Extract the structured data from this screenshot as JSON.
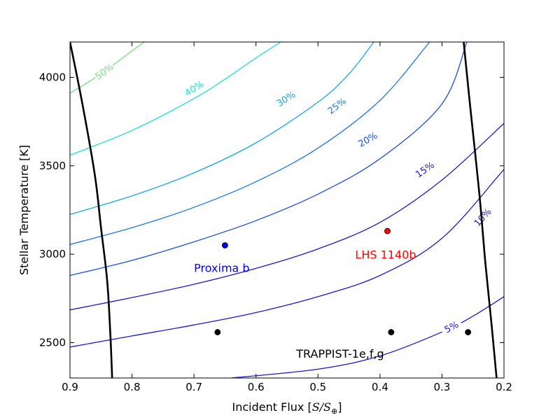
{
  "chart_data": {
    "type": "line",
    "xlabel_text": "Incident Flux [",
    "xlabel_math": "S/S",
    "xlabel_sub": "⊕",
    "xlabel_end": "]",
    "ylabel": "Stellar Temperature [K]",
    "xlim": [
      0.9,
      0.2
    ],
    "ylim": [
      2300,
      4200
    ],
    "x_ticks": [
      0.9,
      0.8,
      0.7,
      0.6,
      0.5,
      0.4,
      0.3,
      0.2
    ],
    "x_tick_labels": [
      "0.9",
      "0.8",
      "0.7",
      "0.6",
      "0.5",
      "0.4",
      "0.3",
      "0.2"
    ],
    "y_ticks": [
      2500,
      3000,
      3500,
      4000
    ],
    "y_tick_labels": [
      "2500",
      "3000",
      "3500",
      "4000"
    ],
    "contours": [
      {
        "label": "5%",
        "color": "#1a1acc",
        "x": [
          0.64,
          0.5,
          0.4,
          0.3,
          0.25,
          0.2
        ],
        "y": [
          2300,
          2350,
          2425,
          2560,
          2650,
          2760
        ]
      },
      {
        "label": "10%",
        "color": "#1a1acc",
        "x": [
          0.9,
          0.8,
          0.7,
          0.6,
          0.5,
          0.4,
          0.3,
          0.2
        ],
        "y": [
          2475,
          2538,
          2600,
          2670,
          2760,
          2880,
          3090,
          3480
        ]
      },
      {
        "label": "15%",
        "color": "#1a1acc",
        "x": [
          0.9,
          0.8,
          0.7,
          0.6,
          0.5,
          0.4,
          0.3,
          0.2
        ],
        "y": [
          2685,
          2755,
          2830,
          2920,
          3030,
          3180,
          3420,
          3740
        ]
      },
      {
        "label": "20%",
        "color": "#1a4fe0",
        "x": [
          0.9,
          0.8,
          0.7,
          0.6,
          0.5,
          0.4,
          0.3,
          0.26
        ],
        "y": [
          2880,
          2965,
          3070,
          3190,
          3340,
          3540,
          3850,
          4200
        ]
      },
      {
        "label": "25%",
        "color": "#1a7ae6",
        "x": [
          0.9,
          0.8,
          0.7,
          0.6,
          0.5,
          0.4,
          0.32
        ],
        "y": [
          3055,
          3150,
          3265,
          3410,
          3600,
          3870,
          4200
        ]
      },
      {
        "label": "30%",
        "color": "#14a8e6",
        "x": [
          0.9,
          0.8,
          0.7,
          0.6,
          0.5,
          0.45,
          0.41
        ],
        "y": [
          3225,
          3330,
          3460,
          3630,
          3860,
          4020,
          4200
        ]
      },
      {
        "label": "40%",
        "color": "#1ae0d8",
        "x": [
          0.9,
          0.8,
          0.7,
          0.65,
          0.6,
          0.56
        ],
        "y": [
          3560,
          3700,
          3880,
          3990,
          4110,
          4200
        ]
      },
      {
        "label": "50%",
        "color": "#6fe07a",
        "x": [
          0.9,
          0.85,
          0.8,
          0.78
        ],
        "y": [
          3910,
          4020,
          4150,
          4200
        ]
      }
    ],
    "contour_label_positions": [
      {
        "label": "5%",
        "x": 0.285,
        "y": 2590
      },
      {
        "label": "10%",
        "x": 0.235,
        "y": 3210
      },
      {
        "label": "15%",
        "x": 0.328,
        "y": 3480
      },
      {
        "label": "20%",
        "x": 0.42,
        "y": 3650
      },
      {
        "label": "25%",
        "x": 0.47,
        "y": 3840
      },
      {
        "label": "30%",
        "x": 0.552,
        "y": 3880
      },
      {
        "label": "40%",
        "x": 0.7,
        "y": 3940
      },
      {
        "label": "50%",
        "x": 0.845,
        "y": 4035
      }
    ],
    "boundaries": [
      {
        "x": [
          0.9,
          0.88,
          0.86,
          0.85,
          0.84,
          0.835,
          0.832
        ],
        "y": [
          4200,
          3850,
          3450,
          3150,
          2850,
          2550,
          2300
        ]
      },
      {
        "x": [
          0.265,
          0.255,
          0.24,
          0.23,
          0.22,
          0.212
        ],
        "y": [
          4200,
          3850,
          3350,
          2950,
          2600,
          2300
        ]
      }
    ],
    "points": [
      {
        "x": 0.65,
        "y": 3050,
        "color": "#0000ff"
      },
      {
        "x": 0.388,
        "y": 3131,
        "color": "#ff0000"
      },
      {
        "x": 0.662,
        "y": 2559,
        "color": "#000000"
      },
      {
        "x": 0.382,
        "y": 2559,
        "color": "#000000"
      },
      {
        "x": 0.258,
        "y": 2559,
        "color": "#000000"
      }
    ],
    "annotations": [
      {
        "text": "Proxima b",
        "x": 0.7,
        "y": 2900,
        "color": "#0000ff"
      },
      {
        "text": "LHS 1140b",
        "x": 0.44,
        "y": 2975,
        "color": "#ff0000"
      },
      {
        "text": "TRAPPIST-1e,f,g",
        "x": 0.535,
        "y": 2415,
        "color": "#000000"
      }
    ],
    "grid": false
  }
}
